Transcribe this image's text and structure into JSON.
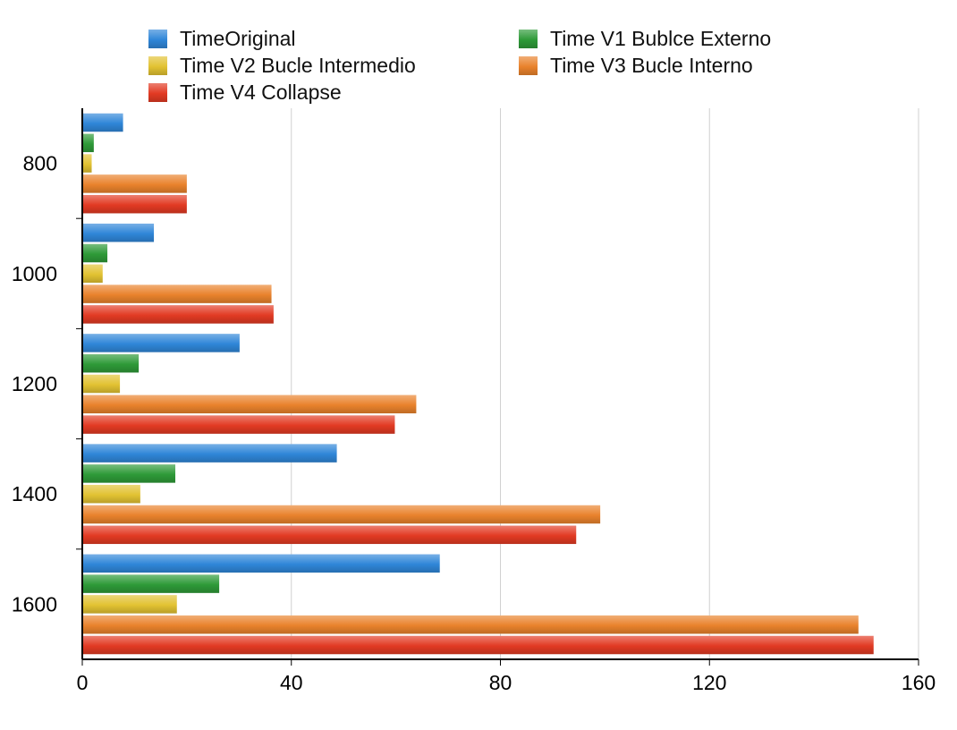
{
  "chart_data": {
    "type": "bar",
    "orientation": "horizontal",
    "categories": [
      "800",
      "1000",
      "1200",
      "1400",
      "1600"
    ],
    "series": [
      {
        "name": "TimeOriginal",
        "color": "#2f86d8",
        "values": [
          7.8,
          13.7,
          30.1,
          48.7,
          68.4
        ]
      },
      {
        "name": "Time V1 Bublce Externo",
        "color": "#2e9a38",
        "values": [
          2.2,
          4.8,
          10.8,
          17.8,
          26.2
        ]
      },
      {
        "name": "Time V2 Bucle Intermedio",
        "color": "#e2c232",
        "values": [
          1.8,
          3.9,
          7.2,
          11.1,
          18.1
        ]
      },
      {
        "name": "Time V3 Bucle Interno",
        "color": "#e9822c",
        "values": [
          20.0,
          36.2,
          63.9,
          99.1,
          148.5
        ]
      },
      {
        "name": "Time V4 Collapse",
        "color": "#e23a23",
        "values": [
          20.0,
          36.6,
          59.8,
          94.5,
          151.4
        ]
      }
    ],
    "x_ticks": [
      "0",
      "40",
      "80",
      "120",
      "160"
    ],
    "xlim": [
      0,
      160
    ],
    "title": "",
    "xlabel": "",
    "ylabel": "",
    "grid": true,
    "legend_position": "top"
  }
}
